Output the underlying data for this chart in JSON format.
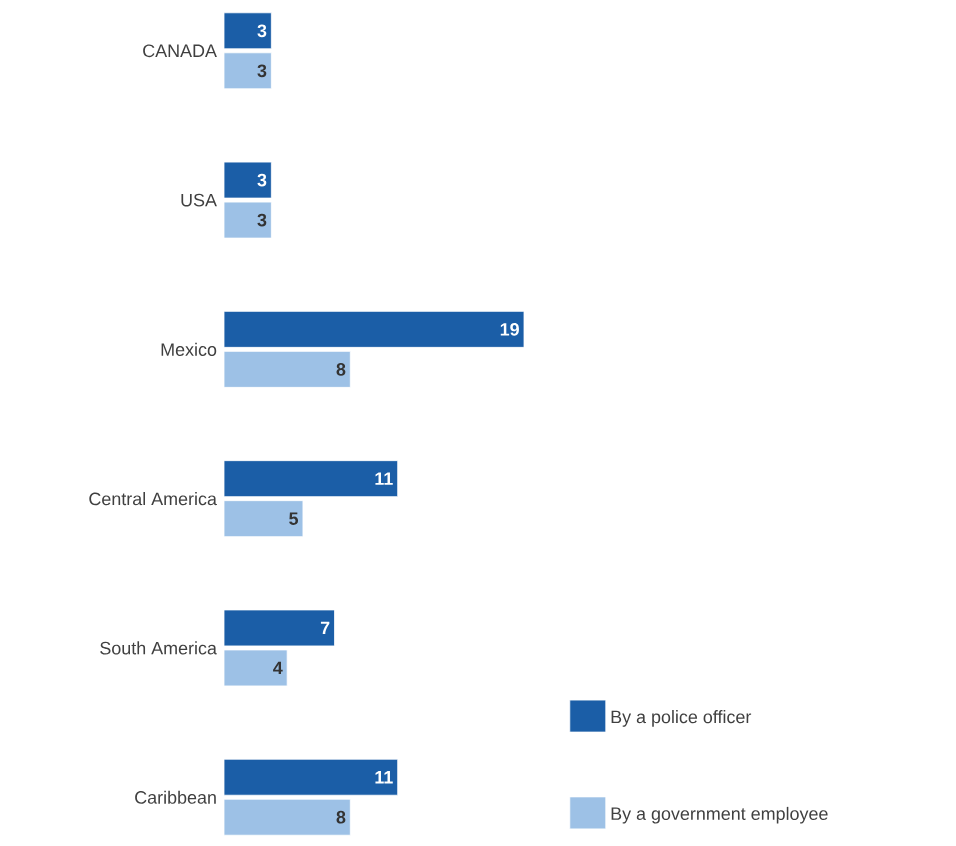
{
  "chart_data": {
    "type": "bar",
    "orientation": "horizontal",
    "categories": [
      "CANADA",
      "USA",
      "Mexico",
      "Central America",
      "South America",
      "Caribbean"
    ],
    "series": [
      {
        "name": "By a police officer",
        "color": "#1b5ea7",
        "values": [
          3,
          3,
          19,
          11,
          7,
          11
        ]
      },
      {
        "name": "By a government employee",
        "color": "#9dc1e6",
        "values": [
          3,
          3,
          8,
          5,
          4,
          8
        ]
      }
    ],
    "data_labels": true,
    "legend": "bottom right"
  }
}
